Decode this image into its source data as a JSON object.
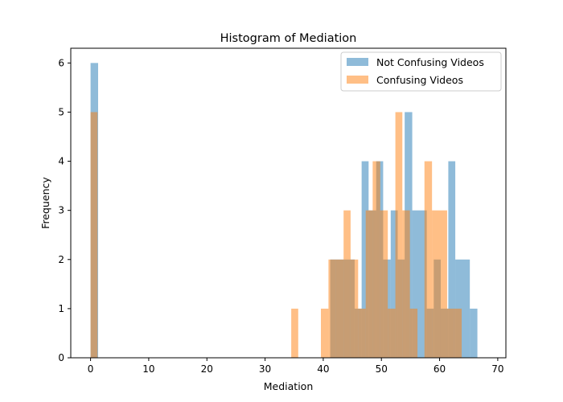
{
  "chart_data": {
    "type": "bar",
    "title": "Histogram of Mediation",
    "xlabel": "Mediation",
    "ylabel": "Frequency",
    "xlim": [
      -3.4,
      71.4
    ],
    "ylim": [
      0,
      6.3
    ],
    "xticks": [
      0,
      10,
      20,
      30,
      40,
      50,
      60,
      70
    ],
    "yticks": [
      0,
      1,
      2,
      3,
      4,
      5,
      6
    ],
    "grid": false,
    "legend_position": "top-right",
    "series": [
      {
        "name": "Not Confusing Videos",
        "color": "#1f77b4",
        "opacity": 0.5,
        "bins": [
          {
            "x0": 0,
            "x1": 1.3,
            "count": 6
          },
          {
            "x0": 41.2,
            "x1": 45.4,
            "count": 2
          },
          {
            "x0": 45.4,
            "x1": 46.6,
            "count": 1
          },
          {
            "x0": 46.6,
            "x1": 47.8,
            "count": 4
          },
          {
            "x0": 47.8,
            "x1": 49.1,
            "count": 3
          },
          {
            "x0": 49.1,
            "x1": 50.3,
            "count": 4
          },
          {
            "x0": 50.3,
            "x1": 51.6,
            "count": 2
          },
          {
            "x0": 51.6,
            "x1": 52.8,
            "count": 3
          },
          {
            "x0": 52.8,
            "x1": 54.0,
            "count": 2
          },
          {
            "x0": 54.0,
            "x1": 55.3,
            "count": 5
          },
          {
            "x0": 55.3,
            "x1": 57.8,
            "count": 3
          },
          {
            "x0": 57.8,
            "x1": 59.0,
            "count": 1
          },
          {
            "x0": 59.0,
            "x1": 60.2,
            "count": 2
          },
          {
            "x0": 60.2,
            "x1": 61.5,
            "count": 1
          },
          {
            "x0": 61.5,
            "x1": 62.7,
            "count": 4
          },
          {
            "x0": 62.7,
            "x1": 65.2,
            "count": 2
          },
          {
            "x0": 65.2,
            "x1": 66.5,
            "count": 1
          }
        ]
      },
      {
        "name": "Confusing Videos",
        "color": "#ff7f0e",
        "opacity": 0.5,
        "bins": [
          {
            "x0": 0,
            "x1": 1.2,
            "count": 5
          },
          {
            "x0": 34.5,
            "x1": 35.7,
            "count": 1
          },
          {
            "x0": 39.6,
            "x1": 40.9,
            "count": 1
          },
          {
            "x0": 40.9,
            "x1": 42.2,
            "count": 2
          },
          {
            "x0": 42.2,
            "x1": 43.5,
            "count": 2
          },
          {
            "x0": 43.5,
            "x1": 44.7,
            "count": 3
          },
          {
            "x0": 44.7,
            "x1": 46.0,
            "count": 2
          },
          {
            "x0": 46.0,
            "x1": 47.3,
            "count": 1
          },
          {
            "x0": 47.3,
            "x1": 48.5,
            "count": 3
          },
          {
            "x0": 48.5,
            "x1": 49.8,
            "count": 4
          },
          {
            "x0": 49.8,
            "x1": 51.1,
            "count": 3
          },
          {
            "x0": 51.1,
            "x1": 52.4,
            "count": 1
          },
          {
            "x0": 52.4,
            "x1": 53.6,
            "count": 5
          },
          {
            "x0": 53.6,
            "x1": 54.9,
            "count": 3
          },
          {
            "x0": 54.9,
            "x1": 56.2,
            "count": 1
          },
          {
            "x0": 56.2,
            "x1": 57.4,
            "count": 0
          },
          {
            "x0": 57.4,
            "x1": 58.7,
            "count": 4
          },
          {
            "x0": 58.7,
            "x1": 61.3,
            "count": 3
          },
          {
            "x0": 61.3,
            "x1": 62.5,
            "count": 1
          },
          {
            "x0": 62.5,
            "x1": 63.8,
            "count": 1
          }
        ]
      }
    ]
  }
}
